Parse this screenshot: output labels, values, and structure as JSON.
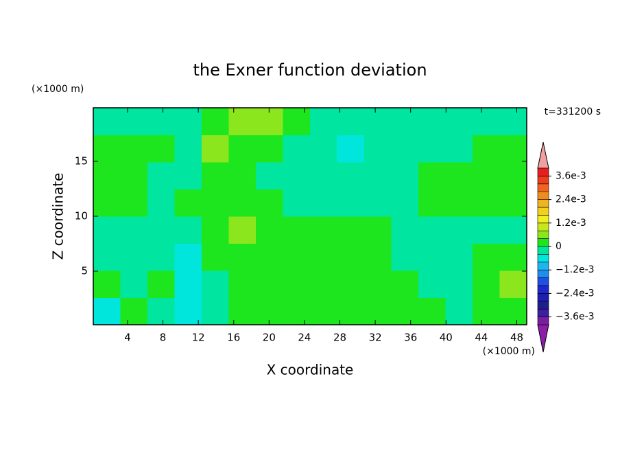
{
  "chart_data": {
    "type": "contour",
    "title": "the Exner function deviation",
    "x_unit": "(×1000 m)",
    "y_unit": "(×1000 m)",
    "time_label": "t=331200 s",
    "x_label": "X coordinate",
    "y_label": "Z coordinate",
    "xlim": [
      0.125,
      49.125
    ],
    "ylim": [
      0.125,
      19.875
    ],
    "xticks": [
      4,
      8,
      12,
      16,
      20,
      24,
      28,
      32,
      36,
      40,
      44,
      48
    ],
    "yticks": [
      5,
      10,
      15
    ],
    "z": [
      [
        -0.0006,
        0.0002,
        -0.0002,
        -0.0006,
        -0.0002,
        0.0002,
        0.0002,
        0.0002,
        0.0002,
        0.0002,
        0.0002,
        0.0002,
        0.0002,
        -0.0002,
        0.0002,
        0.0002
      ],
      [
        0.0002,
        -0.0002,
        0.0002,
        -0.0006,
        -0.0002,
        0.0002,
        0.0002,
        0.0002,
        0.0002,
        0.0002,
        0.0002,
        0.0002,
        -0.0002,
        -0.0002,
        0.0002,
        0.0006
      ],
      [
        -0.0002,
        -0.0002,
        -0.0002,
        -0.0006,
        0.0002,
        0.0002,
        0.0002,
        0.0002,
        0.0002,
        0.0002,
        0.0002,
        -0.0002,
        -0.0002,
        -0.0002,
        0.0002,
        0.0002
      ],
      [
        -0.0002,
        -0.0002,
        -0.0002,
        -0.0002,
        0.0002,
        0.0006,
        0.0002,
        0.0002,
        0.0002,
        0.0002,
        0.0002,
        -0.0002,
        -0.0002,
        -0.0002,
        -0.0002,
        -0.0002
      ],
      [
        0.0002,
        0.0002,
        -0.0002,
        0.0002,
        0.0002,
        0.0002,
        0.0002,
        -0.0002,
        -0.0002,
        -0.0002,
        -0.0002,
        -0.0002,
        0.0002,
        0.0002,
        0.0002,
        0.0002
      ],
      [
        0.0002,
        0.0002,
        -0.0002,
        -0.0002,
        0.0002,
        0.0002,
        -0.0002,
        -0.0002,
        -0.0002,
        -0.0002,
        -0.0002,
        -0.0002,
        0.0002,
        0.0002,
        0.0002,
        0.0002
      ],
      [
        0.0002,
        0.0002,
        0.0002,
        -0.0002,
        0.0006,
        0.0002,
        0.0002,
        -0.0002,
        -0.0002,
        -0.0006,
        -0.0002,
        -0.0002,
        -0.0002,
        -0.0002,
        0.0002,
        0.0002
      ],
      [
        -0.0002,
        -0.0002,
        -0.0002,
        -0.0002,
        0.0002,
        0.0006,
        0.0006,
        0.0002,
        -0.0002,
        -0.0002,
        -0.0002,
        -0.0002,
        -0.0002,
        -0.0002,
        -0.0002,
        -0.0002
      ]
    ],
    "levels": [
      -0.004,
      -0.0036,
      -0.0032,
      -0.0028,
      -0.0024,
      -0.002,
      -0.0016,
      -0.0012,
      -0.0008,
      -0.0004,
      0,
      0.0004,
      0.0008,
      0.0012,
      0.0016,
      0.002,
      0.0024,
      0.0028,
      0.0032,
      0.0036,
      0.004
    ],
    "colors": [
      "#7a1ea0",
      "#3c1ea0",
      "#1e1e8c",
      "#1e1eb4",
      "#1e28d2",
      "#1e50e6",
      "#1e8cf0",
      "#1eb4f0",
      "#00e6dc",
      "#00e6a0",
      "#1ee61e",
      "#8ce61e",
      "#c8e61e",
      "#f0f01e",
      "#f0d21e",
      "#f0b41e",
      "#f08c1e",
      "#f0641e",
      "#f03c1e",
      "#e61e1e"
    ],
    "colorbar_ticks": [
      {
        "value": 0.0036,
        "label": "3.6e-3"
      },
      {
        "value": 0.0024,
        "label": "2.4e-3"
      },
      {
        "value": 0.0012,
        "label": "1.2e-3"
      },
      0,
      {
        "value": -0.0012,
        "label": "−1.2e-3"
      },
      {
        "value": -0.0024,
        "label": "−2.4e-3"
      },
      {
        "value": -0.0036,
        "label": "−3.6e-3"
      }
    ]
  }
}
